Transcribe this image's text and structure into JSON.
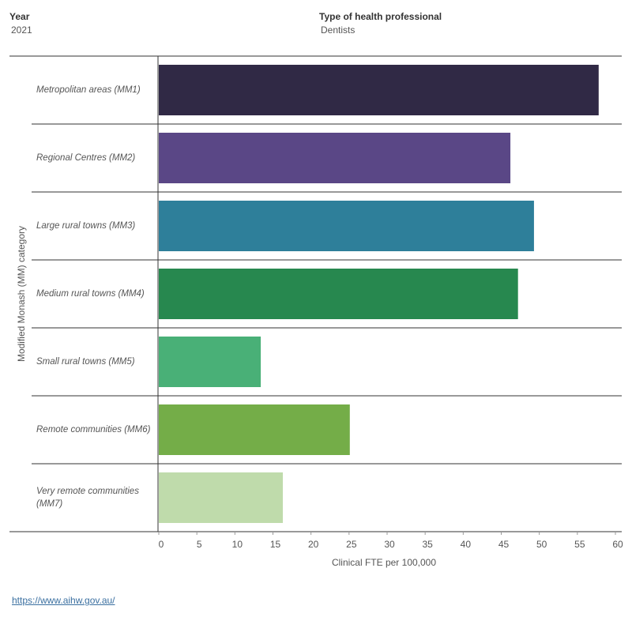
{
  "filters": [
    {
      "label": "Year",
      "value": "2021"
    },
    {
      "label": "Type of health professional",
      "value": "Dentists"
    }
  ],
  "chart_data": {
    "type": "bar",
    "orientation": "horizontal",
    "categories": [
      "Metropolitan areas (MM1)",
      "Regional Centres (MM2)",
      "Large rural towns (MM3)",
      "Medium rural towns (MM4)",
      "Small rural towns (MM5)",
      "Remote communities (MM6)",
      "Very remote communities (MM7)"
    ],
    "values": [
      57.8,
      46.2,
      49.3,
      47.2,
      13.4,
      25.1,
      16.3
    ],
    "colors": [
      "#302945",
      "#5a4786",
      "#2e7f9a",
      "#27884f",
      "#49b077",
      "#74ad48",
      "#bfdbab"
    ],
    "x_label": "Clinical FTE per 100,000",
    "y_label": "Modified Monash (MM) category",
    "xlim": [
      0,
      60
    ],
    "xticks": [
      0,
      5,
      10,
      15,
      20,
      25,
      30,
      35,
      40,
      45,
      50,
      55,
      60
    ],
    "grid": false
  },
  "source_link": "https://www.aihw.gov.au/"
}
